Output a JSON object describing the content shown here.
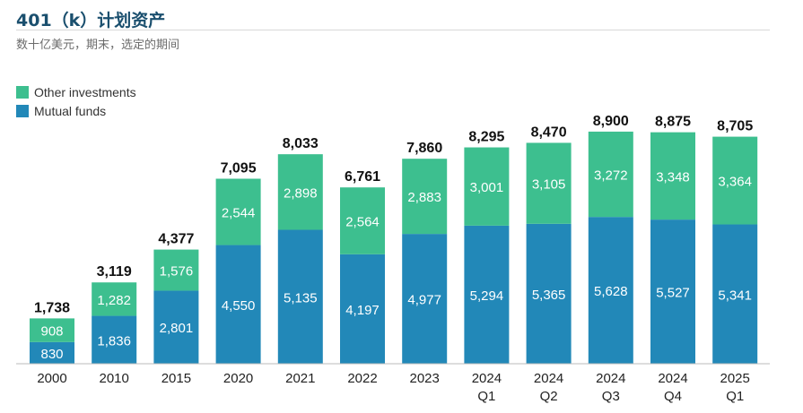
{
  "page": {
    "title": "401（k）计划资产",
    "subtitle": "数十亿美元，期末，选定的期间"
  },
  "colors": {
    "other": "#3dbf8f",
    "mutual": "#2288b8",
    "total_label": "#111111",
    "segment_label": "#ffffff",
    "axis": "#bbbbbb"
  },
  "legend": [
    {
      "name": "Other investments",
      "color": "#3dbf8f"
    },
    {
      "name": "Mutual funds",
      "color": "#2288b8"
    }
  ],
  "chart_data": {
    "type": "bar",
    "stacked": true,
    "title": "401（k）计划资产",
    "subtitle": "数十亿美元，期末，选定的期间",
    "categories": [
      [
        "2000"
      ],
      [
        "2010"
      ],
      [
        "2015"
      ],
      [
        "2020"
      ],
      [
        "2021"
      ],
      [
        "2022"
      ],
      [
        "2023"
      ],
      [
        "2024",
        "Q1"
      ],
      [
        "2024",
        "Q2"
      ],
      [
        "2024",
        "Q3"
      ],
      [
        "2024",
        "Q4"
      ],
      [
        "2025",
        "Q1"
      ]
    ],
    "series": [
      {
        "name": "Mutual funds",
        "values": [
          830,
          1836,
          2801,
          4550,
          5135,
          4197,
          4977,
          5294,
          5365,
          5628,
          5527,
          5341
        ]
      },
      {
        "name": "Other investments",
        "values": [
          908,
          1282,
          1576,
          2544,
          2898,
          2564,
          2883,
          3001,
          3105,
          3272,
          3348,
          3364
        ]
      }
    ],
    "totals": [
      1738,
      3119,
      4377,
      7095,
      8033,
      6761,
      7860,
      8295,
      8470,
      8900,
      8875,
      8705
    ],
    "ylim": [
      0,
      9000
    ],
    "xlabel": "",
    "ylabel": "",
    "legend_position": "top-left"
  }
}
